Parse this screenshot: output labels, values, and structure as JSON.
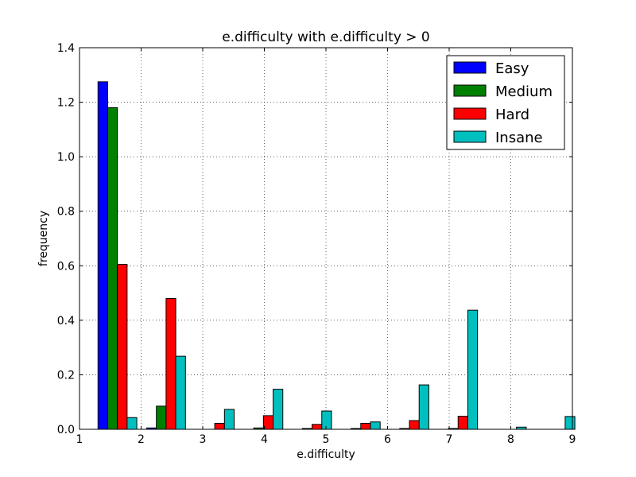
{
  "chart_data": {
    "type": "bar",
    "title": "e.difficulty with e.difficulty > 0",
    "xlabel": "e.difficulty",
    "ylabel": "frequency",
    "xlim": [
      1,
      9
    ],
    "ylim": [
      0,
      1.4
    ],
    "xticks": [
      "1",
      "2",
      "3",
      "4",
      "5",
      "6",
      "7",
      "8",
      "9"
    ],
    "yticks": [
      "0.0",
      "0.2",
      "0.4",
      "0.6",
      "0.8",
      "1.0",
      "1.2",
      "1.4"
    ],
    "grid": true,
    "legend_position": "top-right",
    "bins": [
      1.3,
      2.09,
      2.88,
      3.67,
      4.46,
      5.25,
      6.04,
      6.83,
      7.62,
      8.41
    ],
    "bar_width": 0.1575,
    "series": [
      {
        "name": "Easy",
        "color": "#0000ff",
        "values": [
          1.275,
          0.005,
          0,
          0,
          0,
          0,
          0,
          0,
          0,
          0
        ]
      },
      {
        "name": "Medium",
        "color": "#008000",
        "values": [
          1.18,
          0.085,
          0,
          0.005,
          0.003,
          0.003,
          0.003,
          0.003,
          0,
          0
        ]
      },
      {
        "name": "Hard",
        "color": "#ff0000",
        "values": [
          0.605,
          0.48,
          0.022,
          0.05,
          0.018,
          0.022,
          0.032,
          0.048,
          0,
          0
        ]
      },
      {
        "name": "Insane",
        "color": "#00bfbf",
        "values": [
          0.043,
          0.268,
          0.073,
          0.147,
          0.067,
          0.027,
          0.163,
          0.437,
          0.008,
          0.047
        ]
      }
    ]
  }
}
